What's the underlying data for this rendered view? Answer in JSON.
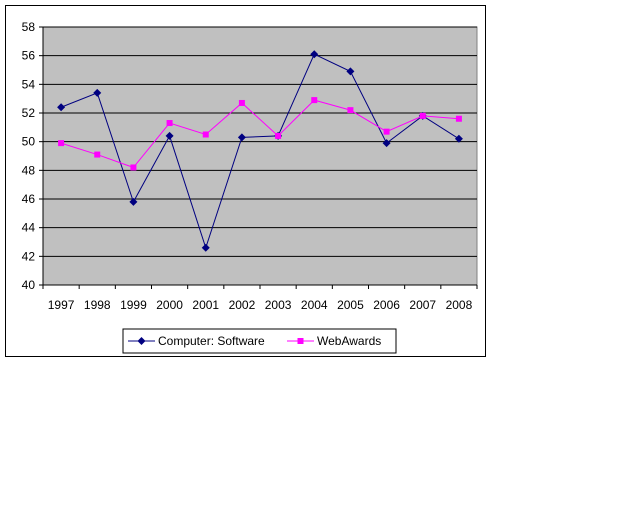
{
  "chart_data": {
    "type": "line",
    "title": "",
    "xlabel": "",
    "ylabel": "",
    "categories": [
      "1997",
      "1998",
      "1999",
      "2000",
      "2001",
      "2002",
      "2003",
      "2004",
      "2005",
      "2006",
      "2007",
      "2008"
    ],
    "ylim": [
      40,
      58
    ],
    "yticks": [
      40,
      42,
      44,
      46,
      48,
      50,
      52,
      54,
      56,
      58
    ],
    "grid": true,
    "legend_position": "bottom",
    "plot_background": "#C0C0C0",
    "series": [
      {
        "name": "Computer: Software",
        "color": "#000080",
        "marker": "diamond",
        "values": [
          52.4,
          53.4,
          45.8,
          50.4,
          42.6,
          50.3,
          50.4,
          56.1,
          54.9,
          49.9,
          51.8,
          50.2
        ]
      },
      {
        "name": "WebAwards",
        "color": "#FF00FF",
        "marker": "square",
        "values": [
          49.9,
          49.1,
          48.2,
          51.3,
          50.5,
          52.7,
          50.4,
          52.9,
          52.2,
          50.7,
          51.8,
          51.6
        ]
      }
    ]
  }
}
